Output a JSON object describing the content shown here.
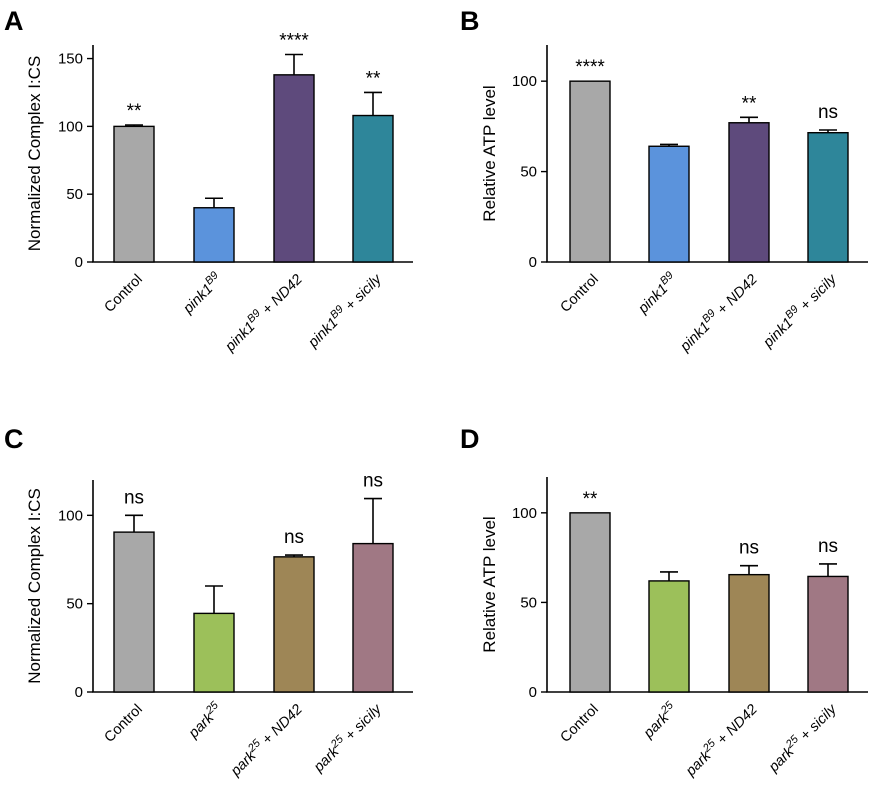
{
  "colors": {
    "control": "#a8a8a8",
    "mutant_blue": "#5b93dc",
    "nd42_purple": "#5e4a7c",
    "sicily_teal": "#2e869a",
    "mutant_green": "#9cc05a",
    "nd42_brown": "#9e8656",
    "sicily_mauve": "#a07884"
  },
  "chart_data": [
    {
      "type": "bar",
      "panel": "A",
      "ylabel": "Normalized Complex I:CS",
      "ylim": [
        0,
        160
      ],
      "yticks": [
        0,
        50,
        100,
        150
      ],
      "categories": [
        {
          "parts": [
            {
              "t": "Control",
              "i": false
            }
          ]
        },
        {
          "parts": [
            {
              "t": "pink1",
              "i": true
            },
            {
              "t": "B9",
              "i": true,
              "sup": true
            }
          ]
        },
        {
          "parts": [
            {
              "t": "pink1",
              "i": true
            },
            {
              "t": "B9",
              "i": true,
              "sup": true
            },
            {
              "t": " + ",
              "i": false
            },
            {
              "t": "ND42",
              "i": true
            }
          ]
        },
        {
          "parts": [
            {
              "t": "pink1",
              "i": true
            },
            {
              "t": "B9",
              "i": true,
              "sup": true
            },
            {
              "t": " + ",
              "i": false
            },
            {
              "t": "sicily",
              "i": true
            }
          ]
        }
      ],
      "values": [
        100,
        40,
        138,
        108
      ],
      "errors": [
        1,
        7,
        15,
        17
      ],
      "significance": [
        "**",
        "",
        "****",
        "**"
      ],
      "bar_colors": [
        "control",
        "mutant_blue",
        "nd42_purple",
        "sicily_teal"
      ]
    },
    {
      "type": "bar",
      "panel": "B",
      "ylabel": "Relative ATP level",
      "ylim": [
        0,
        120
      ],
      "yticks": [
        0,
        50,
        100
      ],
      "categories": [
        {
          "parts": [
            {
              "t": "Control",
              "i": false
            }
          ]
        },
        {
          "parts": [
            {
              "t": "pink1",
              "i": true
            },
            {
              "t": "B9",
              "i": true,
              "sup": true
            }
          ]
        },
        {
          "parts": [
            {
              "t": "pink1",
              "i": true
            },
            {
              "t": "B9",
              "i": true,
              "sup": true
            },
            {
              "t": " + ",
              "i": false
            },
            {
              "t": "ND42",
              "i": true
            }
          ]
        },
        {
          "parts": [
            {
              "t": "pink1",
              "i": true
            },
            {
              "t": "B9",
              "i": true,
              "sup": true
            },
            {
              "t": " + ",
              "i": false
            },
            {
              "t": "sicily",
              "i": true
            }
          ]
        }
      ],
      "values": [
        100,
        64,
        77,
        71.5
      ],
      "errors": [
        0,
        1,
        3,
        1.5
      ],
      "significance": [
        "****",
        "",
        "**",
        "ns"
      ],
      "bar_colors": [
        "control",
        "mutant_blue",
        "nd42_purple",
        "sicily_teal"
      ]
    },
    {
      "type": "bar",
      "panel": "C",
      "ylabel": "Normalized Complex I:CS",
      "ylim": [
        0,
        120
      ],
      "yticks": [
        0,
        50,
        100
      ],
      "categories": [
        {
          "parts": [
            {
              "t": "Control",
              "i": false
            }
          ]
        },
        {
          "parts": [
            {
              "t": "park",
              "i": true
            },
            {
              "t": "25",
              "i": true,
              "sup": true
            }
          ]
        },
        {
          "parts": [
            {
              "t": "park",
              "i": true
            },
            {
              "t": "25",
              "i": true,
              "sup": true
            },
            {
              "t": " + ",
              "i": false
            },
            {
              "t": "ND42",
              "i": true
            }
          ]
        },
        {
          "parts": [
            {
              "t": "park",
              "i": true
            },
            {
              "t": "25",
              "i": true,
              "sup": true
            },
            {
              "t": " + ",
              "i": false
            },
            {
              "t": "sicily",
              "i": true
            }
          ]
        }
      ],
      "values": [
        90.5,
        44.5,
        76.5,
        84
      ],
      "errors": [
        9.5,
        15.5,
        1,
        25.5
      ],
      "significance": [
        "ns",
        "",
        "ns",
        "ns"
      ],
      "bar_colors": [
        "control",
        "mutant_green",
        "nd42_brown",
        "sicily_mauve"
      ]
    },
    {
      "type": "bar",
      "panel": "D",
      "ylabel": "Relative ATP level",
      "ylim": [
        0,
        120
      ],
      "yticks": [
        0,
        50,
        100
      ],
      "categories": [
        {
          "parts": [
            {
              "t": "Control",
              "i": false
            }
          ]
        },
        {
          "parts": [
            {
              "t": "park",
              "i": true
            },
            {
              "t": "25",
              "i": true,
              "sup": true
            }
          ]
        },
        {
          "parts": [
            {
              "t": "park",
              "i": true
            },
            {
              "t": "25",
              "i": true,
              "sup": true
            },
            {
              "t": " + ",
              "i": false
            },
            {
              "t": "ND42",
              "i": true
            }
          ]
        },
        {
          "parts": [
            {
              "t": "park",
              "i": true
            },
            {
              "t": "25",
              "i": true,
              "sup": true
            },
            {
              "t": " + ",
              "i": false
            },
            {
              "t": "sicily",
              "i": true
            }
          ]
        }
      ],
      "values": [
        100,
        62,
        65.5,
        64.5
      ],
      "errors": [
        0,
        5,
        5,
        7
      ],
      "significance": [
        "**",
        "",
        "ns",
        "ns"
      ],
      "bar_colors": [
        "control",
        "mutant_green",
        "nd42_brown",
        "sicily_mauve"
      ]
    }
  ]
}
